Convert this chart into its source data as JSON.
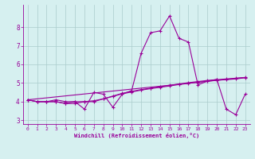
{
  "xlabel": "Windchill (Refroidissement éolien,°C)",
  "bg_color": "#d6f0f0",
  "grid_color": "#aacccc",
  "line_color": "#990099",
  "xlim": [
    -0.5,
    23.5
  ],
  "ylim": [
    2.8,
    9.2
  ],
  "yticks": [
    3,
    4,
    5,
    6,
    7,
    8
  ],
  "xticks": [
    0,
    1,
    2,
    3,
    4,
    5,
    6,
    7,
    8,
    9,
    10,
    11,
    12,
    13,
    14,
    15,
    16,
    17,
    18,
    19,
    20,
    21,
    22,
    23
  ],
  "series1_x": [
    0,
    1,
    2,
    3,
    4,
    5,
    6,
    7,
    8,
    9,
    10,
    11,
    12,
    13,
    14,
    15,
    16,
    17,
    18,
    19,
    20,
    21,
    22,
    23
  ],
  "series1_y": [
    4.1,
    4.0,
    4.0,
    4.1,
    4.0,
    4.0,
    3.6,
    4.5,
    4.4,
    3.7,
    4.4,
    4.6,
    6.6,
    7.7,
    7.8,
    8.6,
    7.4,
    7.2,
    4.9,
    5.1,
    5.2,
    3.6,
    3.3,
    4.4
  ],
  "series2_x": [
    0,
    1,
    2,
    3,
    4,
    5,
    6,
    7,
    8,
    9,
    10,
    11,
    12,
    13,
    14,
    15,
    16,
    17,
    18,
    19,
    20,
    21,
    22,
    23
  ],
  "series2_y": [
    4.1,
    4.0,
    4.0,
    4.0,
    3.9,
    4.0,
    4.0,
    4.0,
    4.15,
    4.3,
    4.45,
    4.55,
    4.65,
    4.72,
    4.8,
    4.88,
    4.95,
    5.02,
    5.08,
    5.14,
    5.18,
    5.22,
    5.26,
    5.3
  ],
  "series3_x": [
    0,
    1,
    2,
    3,
    4,
    5,
    6,
    7,
    8,
    9,
    10,
    11,
    12,
    13,
    14,
    15,
    16,
    17,
    18,
    19,
    20,
    21,
    22,
    23
  ],
  "series3_y": [
    4.1,
    4.0,
    4.0,
    4.0,
    3.9,
    3.9,
    4.0,
    4.05,
    4.15,
    4.28,
    4.42,
    4.52,
    4.62,
    4.7,
    4.77,
    4.84,
    4.92,
    4.98,
    5.04,
    5.1,
    5.15,
    5.18,
    5.22,
    5.28
  ],
  "series4_x": [
    0,
    23
  ],
  "series4_y": [
    4.1,
    5.3
  ]
}
